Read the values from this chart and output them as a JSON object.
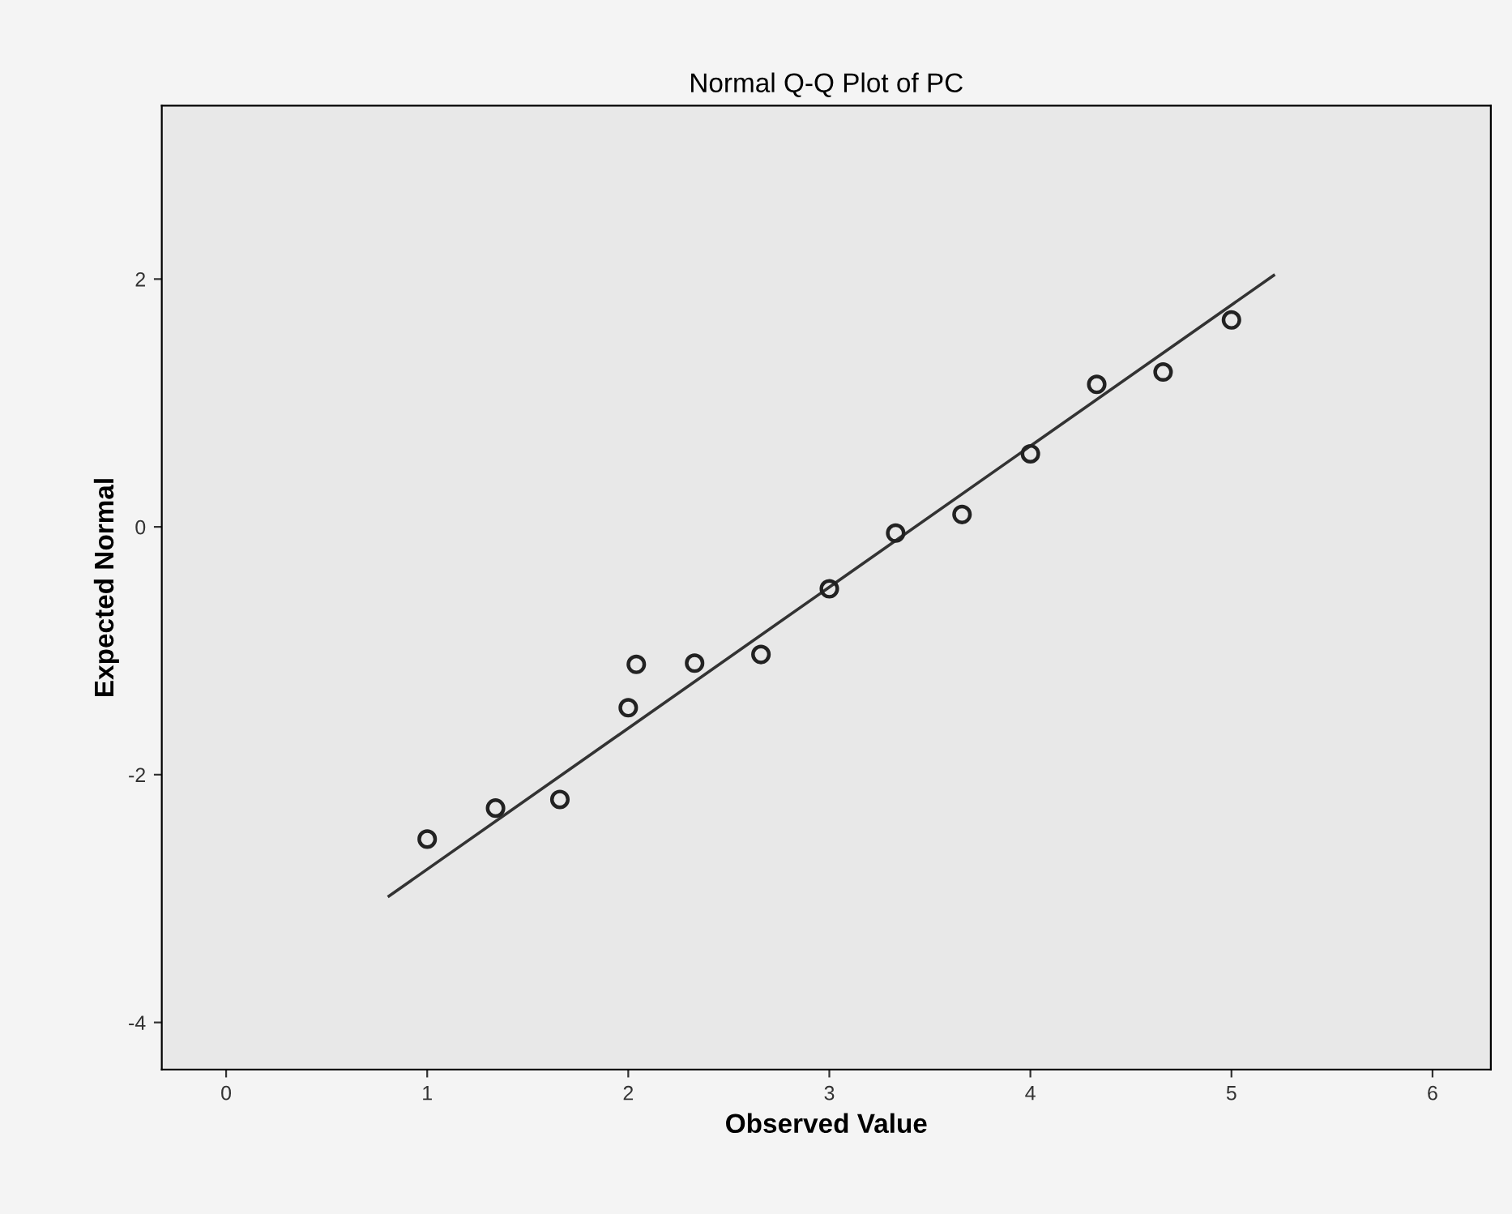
{
  "chart_data": {
    "type": "scatter",
    "title": "Normal Q-Q Plot of PC",
    "xlabel": "Observed Value",
    "ylabel": "Expected Normal",
    "series": [
      {
        "color": "#222222",
        "marker": "circle",
        "x": [
          1.0,
          1.34,
          1.66,
          2.0,
          2.04,
          2.33,
          2.66,
          3.0,
          3.33,
          3.66,
          4.0,
          4.33,
          4.66,
          5.0
        ],
        "values": [
          -2.52,
          -2.27,
          -2.2,
          -1.46,
          -1.11,
          -1.1,
          -1.03,
          -0.5,
          -0.05,
          0.1,
          0.59,
          1.15,
          1.25,
          1.67
        ]
      },
      {
        "type": "line",
        "color": "#333333",
        "x": [
          0.81,
          5.21
        ],
        "values": [
          -2.98,
          2.03
        ]
      }
    ],
    "xlim": [
      -0.32,
      6.29
    ],
    "ylim": [
      -4.38,
      3.4
    ],
    "xticks": [
      0,
      1,
      2,
      3,
      4,
      5,
      6
    ],
    "yticks": [
      {
        "value": -4,
        "label": "-4"
      },
      {
        "value": -2,
        "label": "-2"
      },
      0,
      2
    ],
    "grid": false,
    "legend": false
  }
}
